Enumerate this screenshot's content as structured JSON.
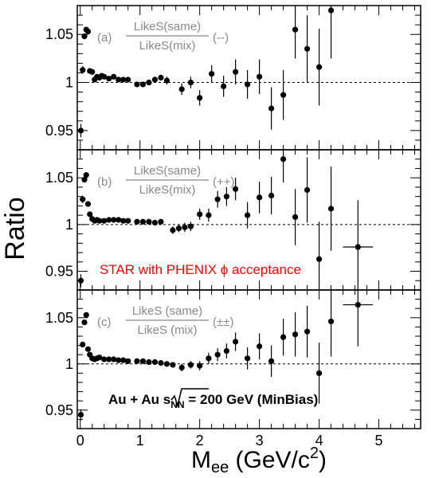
{
  "colors": {
    "points": "#000000",
    "legend": "#888888",
    "note": "#ff0000"
  },
  "labels": {
    "ylabel": "Ratio",
    "xlabel_main": "M",
    "xlabel_sub": "ee",
    "xlabel_rest": " (GeV/c",
    "xlabel_sup": "2",
    "xlabel_end": ")",
    "note_red": "STAR with PHENIX ϕ acceptance",
    "note_black_pre": "Au + Au  ",
    "note_black_s": "s",
    "note_black_sub": "NN",
    "note_black_post": " = 200 GeV (MinBias)"
  },
  "chart_data": [
    {
      "type": "scatter",
      "panel_tag": "(a)",
      "legend_num": "LikeS(same)",
      "legend_den": "LikeS(mix)",
      "legend_sign": "(--)",
      "ylim": [
        0.93,
        1.08
      ],
      "xlim": [
        -0.05,
        5.7
      ],
      "y_ticks": [
        "1.05",
        "1",
        "0.95"
      ],
      "reference_line": 1,
      "points": [
        {
          "x": 0.01,
          "y": 0.95,
          "e": 0.007
        },
        {
          "x": 0.04,
          "y": 1.013,
          "e": 0.004
        },
        {
          "x": 0.07,
          "y": 1.048,
          "e": 0.003
        },
        {
          "x": 0.1,
          "y": 1.055,
          "e": 0.003
        },
        {
          "x": 0.13,
          "y": 1.053,
          "e": 0.003
        },
        {
          "x": 0.16,
          "y": 1.012,
          "e": 0.003
        },
        {
          "x": 0.2,
          "y": 1.011,
          "e": 0.003
        },
        {
          "x": 0.24,
          "y": 1.003,
          "e": 0.002
        },
        {
          "x": 0.28,
          "y": 1.006,
          "e": 0.002
        },
        {
          "x": 0.32,
          "y": 1.005,
          "e": 0.002
        },
        {
          "x": 0.36,
          "y": 1.007,
          "e": 0.002
        },
        {
          "x": 0.4,
          "y": 1.006,
          "e": 0.002
        },
        {
          "x": 0.48,
          "y": 1.004,
          "e": 0.002
        },
        {
          "x": 0.56,
          "y": 1.006,
          "e": 0.002
        },
        {
          "x": 0.64,
          "y": 1.003,
          "e": 0.002
        },
        {
          "x": 0.72,
          "y": 1.003,
          "e": 0.002
        },
        {
          "x": 0.8,
          "y": 1.003,
          "e": 0.002
        },
        {
          "x": 0.95,
          "y": 0.998,
          "e": 0.002
        },
        {
          "x": 1.05,
          "y": 0.998,
          "e": 0.002
        },
        {
          "x": 1.15,
          "y": 1.0,
          "e": 0.003
        },
        {
          "x": 1.25,
          "y": 1.003,
          "e": 0.003
        },
        {
          "x": 1.35,
          "y": 1.005,
          "e": 0.003
        },
        {
          "x": 1.45,
          "y": 1.002,
          "e": 0.004
        },
        {
          "x": 1.7,
          "y": 0.993,
          "e": 0.006
        },
        {
          "x": 1.85,
          "y": 1.0,
          "e": 0.006
        },
        {
          "x": 2.0,
          "y": 0.984,
          "e": 0.008
        },
        {
          "x": 2.2,
          "y": 1.009,
          "e": 0.009
        },
        {
          "x": 2.4,
          "y": 0.996,
          "e": 0.011
        },
        {
          "x": 2.6,
          "y": 1.011,
          "e": 0.013
        },
        {
          "x": 2.8,
          "y": 0.998,
          "e": 0.015
        },
        {
          "x": 3.0,
          "y": 1.006,
          "e": 0.018
        },
        {
          "x": 3.2,
          "y": 0.973,
          "e": 0.022
        },
        {
          "x": 3.4,
          "y": 0.987,
          "e": 0.026
        },
        {
          "x": 3.6,
          "y": 1.055,
          "e": 0.03
        },
        {
          "x": 3.8,
          "y": 1.035,
          "e": 0.035
        },
        {
          "x": 4.0,
          "y": 1.016,
          "e": 0.04
        },
        {
          "x": 4.2,
          "y": 1.075,
          "e": 0.05
        }
      ]
    },
    {
      "type": "scatter",
      "panel_tag": "(b)",
      "legend_num": "LikeS(same)",
      "legend_den": "LikeS(mix)",
      "legend_sign": "(++)",
      "ylim": [
        0.93,
        1.08
      ],
      "xlim": [
        -0.05,
        5.7
      ],
      "y_ticks": [
        "1.05",
        "1",
        "0.95"
      ],
      "reference_line": 1,
      "points": [
        {
          "x": 0.01,
          "y": 0.94,
          "e": 0.007
        },
        {
          "x": 0.04,
          "y": 1.027,
          "e": 0.004
        },
        {
          "x": 0.07,
          "y": 1.048,
          "e": 0.003
        },
        {
          "x": 0.1,
          "y": 1.053,
          "e": 0.003
        },
        {
          "x": 0.13,
          "y": 1.022,
          "e": 0.003
        },
        {
          "x": 0.16,
          "y": 1.011,
          "e": 0.003
        },
        {
          "x": 0.2,
          "y": 1.006,
          "e": 0.002
        },
        {
          "x": 0.24,
          "y": 1.004,
          "e": 0.002
        },
        {
          "x": 0.28,
          "y": 1.005,
          "e": 0.002
        },
        {
          "x": 0.32,
          "y": 1.004,
          "e": 0.002
        },
        {
          "x": 0.4,
          "y": 1.004,
          "e": 0.002
        },
        {
          "x": 0.48,
          "y": 1.005,
          "e": 0.002
        },
        {
          "x": 0.56,
          "y": 1.005,
          "e": 0.002
        },
        {
          "x": 0.64,
          "y": 1.005,
          "e": 0.002
        },
        {
          "x": 0.72,
          "y": 1.004,
          "e": 0.002
        },
        {
          "x": 0.8,
          "y": 1.004,
          "e": 0.002
        },
        {
          "x": 0.95,
          "y": 1.003,
          "e": 0.002
        },
        {
          "x": 1.05,
          "y": 1.003,
          "e": 0.002
        },
        {
          "x": 1.15,
          "y": 1.003,
          "e": 0.003
        },
        {
          "x": 1.25,
          "y": 1.002,
          "e": 0.003
        },
        {
          "x": 1.35,
          "y": 1.003,
          "e": 0.003
        },
        {
          "x": 1.55,
          "y": 0.994,
          "e": 0.004
        },
        {
          "x": 1.65,
          "y": 0.996,
          "e": 0.004
        },
        {
          "x": 1.75,
          "y": 0.997,
          "e": 0.005
        },
        {
          "x": 1.85,
          "y": 0.998,
          "e": 0.005
        },
        {
          "x": 2.0,
          "y": 1.011,
          "e": 0.006
        },
        {
          "x": 2.15,
          "y": 1.01,
          "e": 0.007
        },
        {
          "x": 2.3,
          "y": 1.027,
          "e": 0.009
        },
        {
          "x": 2.45,
          "y": 1.03,
          "e": 0.01
        },
        {
          "x": 2.6,
          "y": 1.038,
          "e": 0.012
        },
        {
          "x": 2.8,
          "y": 1.01,
          "e": 0.014
        },
        {
          "x": 3.0,
          "y": 1.029,
          "e": 0.017
        },
        {
          "x": 3.2,
          "y": 1.031,
          "e": 0.02
        },
        {
          "x": 3.4,
          "y": 1.07,
          "e": 0.025
        },
        {
          "x": 3.6,
          "y": 1.008,
          "e": 0.03
        },
        {
          "x": 3.8,
          "y": 1.037,
          "e": 0.035
        },
        {
          "x": 4.0,
          "y": 0.963,
          "e": 0.04
        },
        {
          "x": 4.2,
          "y": 1.017,
          "e": 0.045
        },
        {
          "x": 4.65,
          "y": 0.976,
          "e": 0.05,
          "xe": 0.25
        }
      ]
    },
    {
      "type": "scatter",
      "panel_tag": "(c)",
      "legend_num": "LikeS (same)",
      "legend_den": "LikeS (mix)",
      "legend_sign": "(±±)",
      "ylim": [
        0.93,
        1.08
      ],
      "xlim": [
        -0.05,
        5.7
      ],
      "y_ticks": [
        "1.05",
        "1",
        "0.95"
      ],
      "x_ticks": [
        "0",
        "1",
        "2",
        "3",
        "4",
        "5"
      ],
      "reference_line": 1,
      "points": [
        {
          "x": 0.01,
          "y": 0.945,
          "e": 0.006
        },
        {
          "x": 0.04,
          "y": 1.021,
          "e": 0.003
        },
        {
          "x": 0.07,
          "y": 1.045,
          "e": 0.003
        },
        {
          "x": 0.1,
          "y": 1.053,
          "e": 0.003
        },
        {
          "x": 0.13,
          "y": 1.016,
          "e": 0.002
        },
        {
          "x": 0.16,
          "y": 1.01,
          "e": 0.002
        },
        {
          "x": 0.2,
          "y": 1.006,
          "e": 0.002
        },
        {
          "x": 0.24,
          "y": 1.005,
          "e": 0.002
        },
        {
          "x": 0.28,
          "y": 1.006,
          "e": 0.002
        },
        {
          "x": 0.32,
          "y": 1.007,
          "e": 0.002
        },
        {
          "x": 0.4,
          "y": 1.005,
          "e": 0.002
        },
        {
          "x": 0.48,
          "y": 1.005,
          "e": 0.002
        },
        {
          "x": 0.56,
          "y": 1.005,
          "e": 0.002
        },
        {
          "x": 0.64,
          "y": 1.004,
          "e": 0.002
        },
        {
          "x": 0.72,
          "y": 1.004,
          "e": 0.002
        },
        {
          "x": 0.8,
          "y": 1.003,
          "e": 0.002
        },
        {
          "x": 0.95,
          "y": 1.003,
          "e": 0.002
        },
        {
          "x": 1.05,
          "y": 1.003,
          "e": 0.002
        },
        {
          "x": 1.15,
          "y": 1.002,
          "e": 0.002
        },
        {
          "x": 1.25,
          "y": 1.002,
          "e": 0.002
        },
        {
          "x": 1.35,
          "y": 1.001,
          "e": 0.003
        },
        {
          "x": 1.45,
          "y": 1.0,
          "e": 0.003
        },
        {
          "x": 1.55,
          "y": 0.999,
          "e": 0.003
        },
        {
          "x": 1.7,
          "y": 0.996,
          "e": 0.004
        },
        {
          "x": 1.85,
          "y": 0.999,
          "e": 0.004
        },
        {
          "x": 2.0,
          "y": 0.998,
          "e": 0.005
        },
        {
          "x": 2.15,
          "y": 1.006,
          "e": 0.006
        },
        {
          "x": 2.3,
          "y": 1.01,
          "e": 0.007
        },
        {
          "x": 2.45,
          "y": 1.014,
          "e": 0.008
        },
        {
          "x": 2.6,
          "y": 1.024,
          "e": 0.01
        },
        {
          "x": 2.8,
          "y": 1.006,
          "e": 0.012
        },
        {
          "x": 3.0,
          "y": 1.019,
          "e": 0.014
        },
        {
          "x": 3.2,
          "y": 1.003,
          "e": 0.017
        },
        {
          "x": 3.4,
          "y": 1.029,
          "e": 0.02
        },
        {
          "x": 3.6,
          "y": 1.032,
          "e": 0.024
        },
        {
          "x": 3.8,
          "y": 1.035,
          "e": 0.028
        },
        {
          "x": 4.0,
          "y": 0.99,
          "e": 0.033
        },
        {
          "x": 4.2,
          "y": 1.046,
          "e": 0.038
        },
        {
          "x": 4.65,
          "y": 1.064,
          "e": 0.045,
          "xe": 0.25
        }
      ]
    }
  ]
}
